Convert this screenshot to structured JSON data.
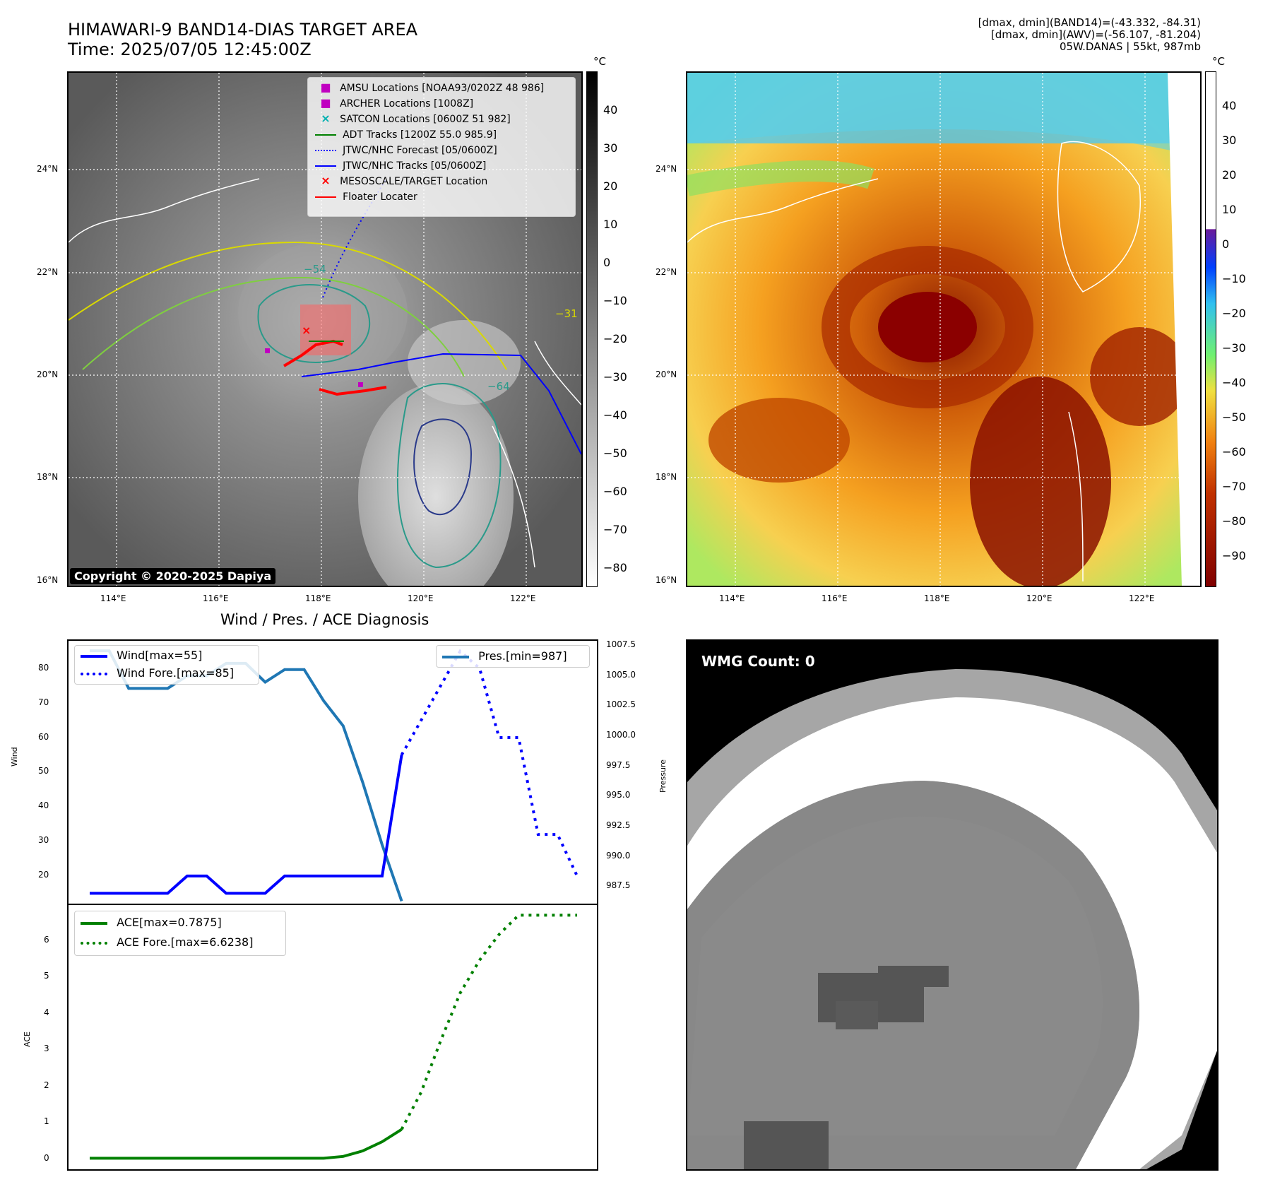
{
  "header": {
    "title_line1": "HIMAWARI-9 BAND14-DIAS TARGET AREA",
    "title_line2": "Time: 2025/07/05 12:45:00Z",
    "info_line1": "[dmax, dmin](BAND14)=(-43.332, -84.31)",
    "info_line2": "[dmax, dmin](AWV)=(-56.107, -81.204)",
    "info_line3": "05W.DANAS | 55kt, 987mb"
  },
  "map": {
    "lat_labels": [
      "24°N",
      "22°N",
      "20°N",
      "18°N",
      "16°N"
    ],
    "lon_labels": [
      "114°E",
      "116°E",
      "118°E",
      "120°E",
      "122°E"
    ],
    "copyright": "Copyright © 2020-2025 Dapiya",
    "colorbar1_unit": "°C",
    "colorbar1_ticks": [
      "40",
      "30",
      "20",
      "10",
      "0",
      "−10",
      "−20",
      "−30",
      "−40",
      "−50",
      "−60",
      "−70",
      "−80"
    ],
    "colorbar2_unit": "°C",
    "colorbar2_ticks": [
      "40",
      "30",
      "20",
      "10",
      "0",
      "−10",
      "−20",
      "−30",
      "−40",
      "−50",
      "−60",
      "−70",
      "−80",
      "−90"
    ],
    "contour_labels": [
      "−54",
      "−64",
      "−31"
    ],
    "legend": [
      {
        "label": "AMSU Locations [NOAA93/0202Z 48 986]",
        "color": "#c000c0",
        "marker": "square"
      },
      {
        "label": "ARCHER Locations [1008Z]",
        "color": "#c000c0",
        "marker": "square"
      },
      {
        "label": "SATCON Locations [0600Z 51 982]",
        "color": "#00b0b0",
        "marker": "x"
      },
      {
        "label": "ADT Tracks [1200Z 55.0 985.9]",
        "color": "#008000",
        "marker": "line"
      },
      {
        "label": "JTWC/NHC Forecast [05/0600Z]",
        "color": "#0000ff",
        "marker": "dotted"
      },
      {
        "label": "JTWC/NHC Tracks [05/0600Z]",
        "color": "#0000ff",
        "marker": "line-dot"
      },
      {
        "label": "MESOSCALE/TARGET Location",
        "color": "#ff0000",
        "marker": "x"
      },
      {
        "label": "Floater Locater",
        "color": "#ff0000",
        "marker": "line"
      }
    ]
  },
  "diagnosis": {
    "title": "Wind / Pres. / ACE Diagnosis",
    "wind_ylabel": "Wind",
    "pres_ylabel": "Pressure",
    "ace_ylabel": "ACE",
    "wind_ticks": [
      "80",
      "70",
      "60",
      "50",
      "40",
      "30",
      "20"
    ],
    "pres_ticks": [
      "1007.5",
      "1005.0",
      "1002.5",
      "1000.0",
      "997.5",
      "995.0",
      "992.5",
      "990.0",
      "987.5"
    ],
    "ace_ticks": [
      "6",
      "5",
      "4",
      "3",
      "2",
      "1",
      "0"
    ],
    "legend_wind": "Wind[max=55]",
    "legend_wind_fore": "Wind Fore.[max=85]",
    "legend_pres": "Pres.[min=987]",
    "legend_ace": "ACE[max=0.7875]",
    "legend_ace_fore": "ACE Fore.[max=6.6238]",
    "colors": {
      "wind": "#0000ff",
      "pres": "#1f77b4",
      "ace": "#008000"
    }
  },
  "wmg": {
    "label": "WMG Count: 0"
  },
  "chart_data": [
    {
      "type": "line",
      "title": "Wind / Pres. / ACE Diagnosis",
      "ylabel": "Wind",
      "ylim": [
        12,
        88
      ],
      "series": [
        {
          "name": "Wind[max=55]",
          "x": [
            0,
            1,
            2,
            3,
            4,
            5,
            6,
            7,
            8,
            9,
            10,
            11,
            12,
            13,
            14,
            15,
            16
          ],
          "values": [
            15,
            15,
            15,
            15,
            15,
            20,
            20,
            15,
            15,
            15,
            20,
            20,
            20,
            20,
            20,
            20,
            55
          ]
        },
        {
          "name": "Wind Fore.[max=85]",
          "x": [
            16,
            17,
            18,
            19,
            20,
            21,
            22,
            23,
            24,
            25
          ],
          "values": [
            55,
            65,
            75,
            85,
            80,
            60,
            60,
            32,
            32,
            20
          ]
        }
      ]
    },
    {
      "type": "line",
      "ylabel": "Pressure",
      "ylim": [
        986.8,
        1007.8
      ],
      "series": [
        {
          "name": "Pres.[min=987]",
          "x": [
            0,
            1,
            2,
            3,
            4,
            5,
            6,
            7,
            8,
            9,
            10,
            11,
            12,
            13,
            14,
            15,
            16
          ],
          "values": [
            1007,
            1007,
            1004,
            1004,
            1004,
            1005,
            1005,
            1006,
            1006,
            1004.5,
            1005.5,
            1005.5,
            1003,
            1001,
            996.5,
            991.5,
            987
          ]
        }
      ]
    },
    {
      "type": "line",
      "ylabel": "ACE",
      "ylim": [
        -0.3,
        6.9
      ],
      "series": [
        {
          "name": "ACE[max=0.7875]",
          "x": [
            0,
            2,
            4,
            6,
            8,
            10,
            12,
            13,
            14,
            15,
            16
          ],
          "values": [
            0,
            0,
            0,
            0,
            0,
            0,
            0,
            0.05,
            0.2,
            0.45,
            0.7875
          ]
        },
        {
          "name": "ACE Fore.[max=6.6238]",
          "x": [
            16,
            17,
            18,
            19,
            20,
            21,
            22,
            23,
            24,
            25
          ],
          "values": [
            0.7875,
            1.8,
            3.2,
            4.5,
            5.4,
            6.1,
            6.6238,
            6.6238,
            6.6238,
            6.6238
          ]
        }
      ]
    }
  ]
}
